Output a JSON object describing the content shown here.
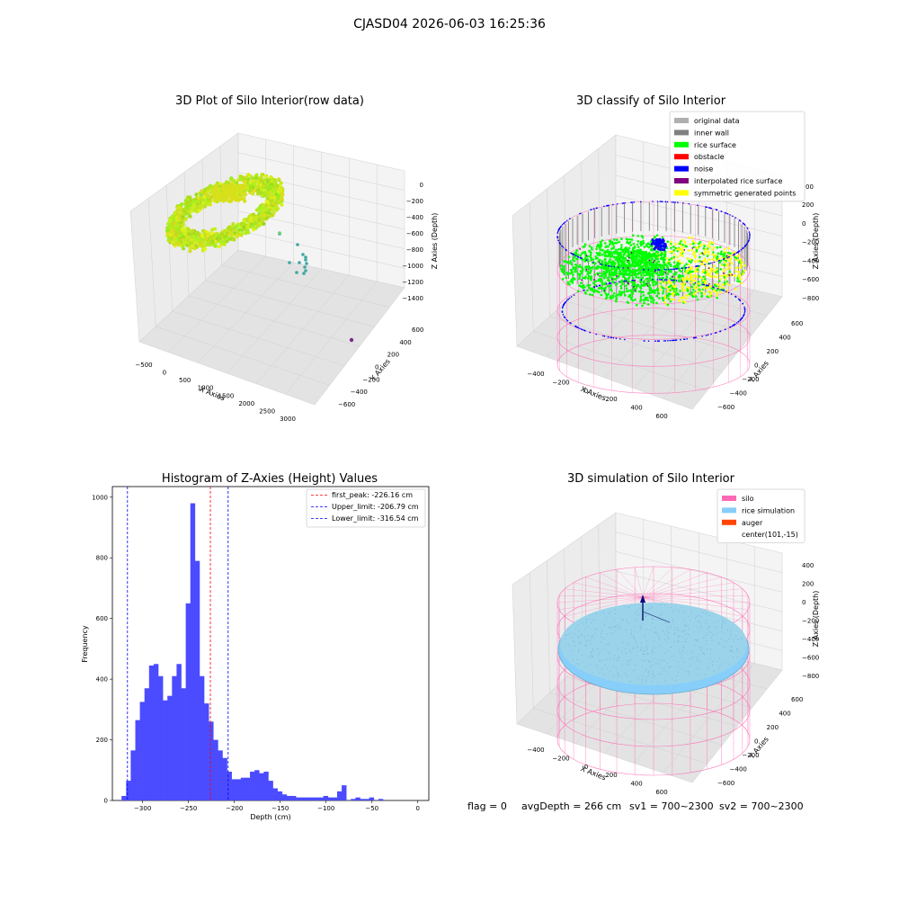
{
  "suptitle": "CJASD04 2026-06-03 16:25:36",
  "footer": {
    "flag": "flag = 0",
    "avg_depth": "avgDepth = 266 cm",
    "sv1": "sv1 = 700~2300",
    "sv2": "sv2 = 700~2300"
  },
  "colors": {
    "histogram_bar": "#4b4bff",
    "first_peak_line": "#ff0000",
    "limit_lines": "#0000ff",
    "silo_wire": "#ff69b4",
    "rice_simulation": "#87cefa",
    "auger": "#ff4500",
    "rice_surface": "#00ff00",
    "noise": "#0000ff",
    "obstacle": "#ff0000",
    "inner_wall": "#808080",
    "original_data": "#b0b0b0",
    "interpolated_rice_surface": "#800080",
    "symmetric_generated_points": "#ffff00"
  },
  "chart_data": [
    {
      "type": "scatter3d",
      "title": "3D Plot of Silo Interior(row data)",
      "xlabel": "X Axies",
      "ylabel": "Y Axies",
      "zlabel": "Z Axies (Depth)",
      "x_ticks": [
        "−500",
        "0",
        "500",
        "1000",
        "1500",
        "2000",
        "2500",
        "3000"
      ],
      "y_ticks": [
        "−600",
        "−400",
        "−200",
        "0",
        "200",
        "400",
        "600"
      ],
      "z_ticks": [
        "0",
        "−200",
        "−400",
        "−600",
        "−800",
        "−1000",
        "−1200",
        "−1400"
      ],
      "xlim": [
        -600,
        3200
      ],
      "ylim": [
        -650,
        650
      ],
      "zlim": [
        -1500,
        100
      ]
    },
    {
      "type": "scatter3d",
      "title": "3D classify of Silo Interior",
      "xlabel": "X Axies",
      "ylabel": "Y Axies",
      "zlabel": "Z Axies (Depth)",
      "x_ticks": [
        "−400",
        "−200",
        "0",
        "200",
        "400",
        "600"
      ],
      "y_ticks": [
        "−600",
        "−400",
        "−200",
        "0",
        "200",
        "400",
        "600"
      ],
      "z_ticks": [
        "200",
        "0",
        "−200",
        "−400",
        "−600",
        "−800"
      ],
      "legend_position": "upper right",
      "legend": [
        {
          "label": "original data",
          "color": "#b0b0b0"
        },
        {
          "label": "inner wall",
          "color": "#808080"
        },
        {
          "label": "rice surface",
          "color": "#00ff00"
        },
        {
          "label": "obstacle",
          "color": "#ff0000"
        },
        {
          "label": "noise",
          "color": "#0000ff"
        },
        {
          "label": "interpolated rice surface",
          "color": "#800080"
        },
        {
          "label": "symmetric generated points",
          "color": "#ffff00"
        }
      ],
      "top_tick_partial": "00"
    },
    {
      "type": "bar",
      "title": "Histogram of Z-Axies (Height) Values",
      "xlabel": "Depth (cm)",
      "ylabel": "Frequency",
      "x_ticks": [
        -300,
        -250,
        -200,
        -150,
        -100,
        -50,
        0
      ],
      "x_tick_labels": [
        "−300",
        "−250",
        "−200",
        "−150",
        "−100",
        "−50",
        "0"
      ],
      "y_ticks": [
        0,
        200,
        400,
        600,
        800,
        1000
      ],
      "y_tick_labels": [
        "0",
        "200",
        "400",
        "600",
        "800",
        "1000"
      ],
      "xlim": [
        -333,
        12
      ],
      "ylim": [
        0,
        1035
      ],
      "bin_start": -323,
      "bin_width": 5,
      "values": [
        15,
        65,
        165,
        265,
        325,
        370,
        445,
        450,
        410,
        330,
        345,
        410,
        450,
        370,
        650,
        980,
        790,
        410,
        320,
        260,
        200,
        165,
        140,
        95,
        70,
        70,
        75,
        75,
        95,
        100,
        90,
        95,
        65,
        40,
        30,
        20,
        15,
        15,
        10,
        10,
        10,
        10,
        10,
        10,
        15,
        10,
        10,
        30,
        50,
        0,
        5,
        10,
        5,
        5,
        10,
        0,
        5
      ],
      "vlines": [
        {
          "x": -226.16,
          "color": "#ff0000",
          "label": "first_peak: -226.16 cm"
        },
        {
          "x": -206.79,
          "color": "#0000ff",
          "label": "Upper_limit: -206.79 cm"
        },
        {
          "x": -316.54,
          "color": "#0000ff",
          "label": "Lower_limit: -316.54 cm"
        }
      ],
      "legend_position": "upper right"
    },
    {
      "type": "surface3d",
      "title": "3D simulation of Silo Interior",
      "xlabel": "X Axies",
      "ylabel": "Y Axies",
      "zlabel": "Z Axies (Depth)",
      "x_ticks": [
        "−400",
        "−200",
        "0",
        "200",
        "400",
        "600"
      ],
      "y_ticks": [
        "−600",
        "−400",
        "−200",
        "0",
        "200",
        "400",
        "600"
      ],
      "z_ticks": [
        "400",
        "200",
        "0",
        "−200",
        "−400",
        "−600",
        "−800"
      ],
      "legend_position": "upper right",
      "legend": [
        {
          "label": "silo",
          "color": "#ff69b4"
        },
        {
          "label": "rice simulation",
          "color": "#87cefa"
        },
        {
          "label": "auger",
          "color": "#ff4500"
        },
        {
          "label": "center(101,-15)",
          "color": ""
        }
      ]
    }
  ]
}
